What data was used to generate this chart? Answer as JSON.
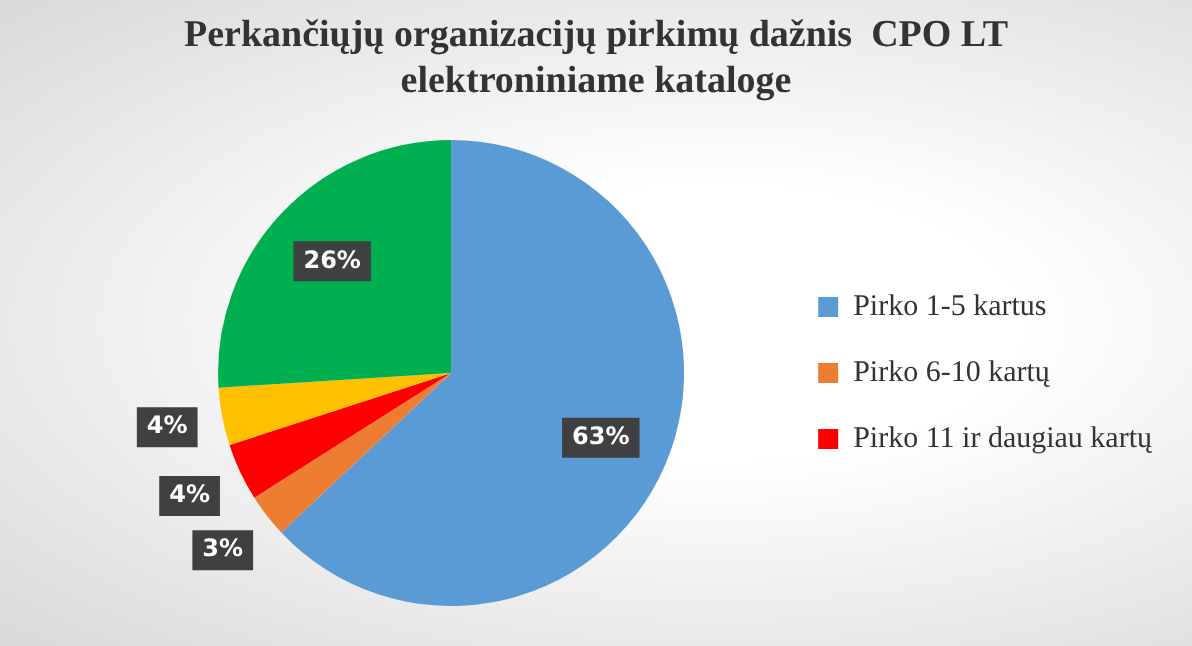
{
  "chart_data": {
    "type": "pie",
    "title": "Perkančiųjų organizacijų pirkimų dažnis  CPO LT elektroniniame kataloge",
    "categories": [
      "Pirko 1-5 kartus",
      "Pirko 6-10 kartų",
      "Pirko 11 ir daugiau kartų",
      null,
      null
    ],
    "values": [
      63,
      3,
      4,
      4,
      26
    ],
    "colors": [
      "#5b9bd5",
      "#ed7d31",
      "#ff0000",
      "#ffc000",
      "#00b050"
    ],
    "value_labels": [
      "63%",
      "3%",
      "4%",
      "4%",
      "26%"
    ],
    "legend": "right"
  }
}
